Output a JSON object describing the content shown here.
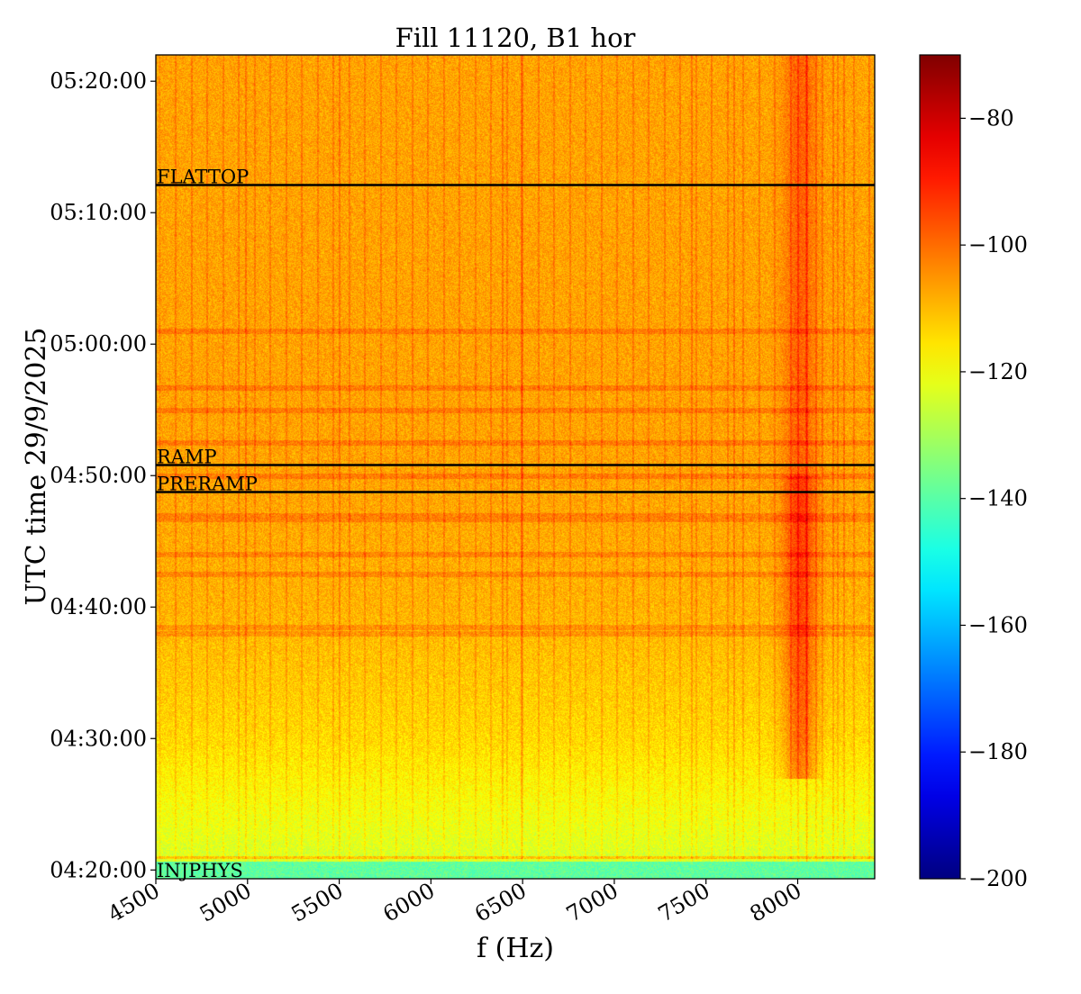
{
  "chart_data": {
    "type": "heatmap",
    "title": "Fill 11120, B1 hor",
    "xlabel": "f (Hz)",
    "ylabel": "UTC time 29/9/2025",
    "xlim": [
      4500,
      8420
    ],
    "ylim": [
      "04:19:20",
      "05:22:00"
    ],
    "x_ticks": [
      4500,
      5000,
      5500,
      6000,
      6500,
      7000,
      7500,
      8000
    ],
    "x_tick_labels": [
      "4500",
      "5000",
      "5500",
      "6000",
      "6500",
      "7000",
      "7500",
      "8000"
    ],
    "y_ticks": [
      "04:20:00",
      "04:30:00",
      "04:40:00",
      "04:50:00",
      "05:00:00",
      "05:10:00",
      "05:20:00"
    ],
    "y_tick_labels": [
      "04:20:00",
      "04:30:00",
      "04:40:00",
      "04:50:00",
      "05:00:00",
      "05:10:00",
      "05:20:00"
    ],
    "colorscale": "jet",
    "color_range": [
      -200,
      -70
    ],
    "colorbar_ticks": [
      -80,
      -100,
      -120,
      -140,
      -160,
      -180,
      -200
    ],
    "colorbar_tick_labels": [
      "−80",
      "−100",
      "−120",
      "−140",
      "−160",
      "−180",
      "−200"
    ],
    "phase_markers": [
      {
        "label": "FLATTOP",
        "time": "05:12:06"
      },
      {
        "label": "RAMP",
        "time": "04:50:48"
      },
      {
        "label": "PRERAMP",
        "time": "04:48:45"
      },
      {
        "label": "INJPHYS",
        "time": "04:19:20"
      }
    ],
    "grid": false,
    "legend": "colorbar-right"
  }
}
